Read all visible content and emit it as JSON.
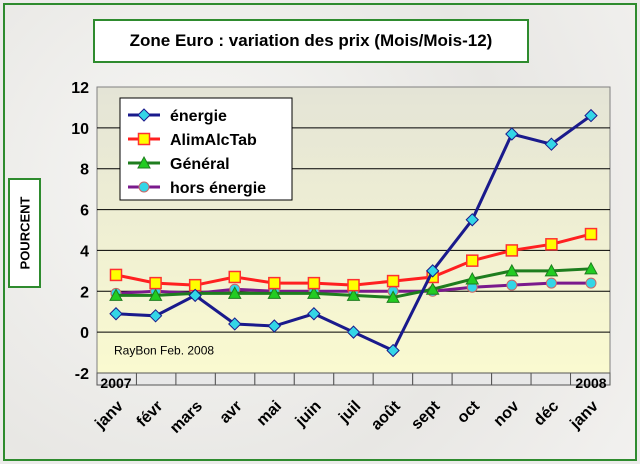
{
  "chart_data": {
    "type": "line",
    "title": "Zone Euro : variation des prix (Mois/Mois-12)",
    "ylabel": "POURCENT",
    "xlabel": "",
    "ylim": [
      -2,
      12
    ],
    "yticks": [
      -2,
      0,
      2,
      4,
      6,
      8,
      10,
      12
    ],
    "categories": [
      "janv",
      "févr",
      "mars",
      "avr",
      "mai",
      "juin",
      "juil",
      "août",
      "sept",
      "oct",
      "nov",
      "déc",
      "janv"
    ],
    "year_labels": [
      {
        "index": 0,
        "label": "2007"
      },
      {
        "index": 12,
        "label": "2008"
      }
    ],
    "annotation": "RayBon Feb. 2008",
    "legend_position": "top-left",
    "grid": true,
    "series": [
      {
        "name": "énergie",
        "color": "#1a1a8c",
        "marker": "diamond",
        "marker_color": "#33d6e6",
        "values": [
          0.9,
          0.8,
          1.8,
          0.4,
          0.3,
          0.9,
          0.0,
          -0.9,
          3.0,
          5.5,
          9.7,
          9.2,
          10.6
        ]
      },
      {
        "name": "AlimAlcTab",
        "color": "#ff2020",
        "marker": "square",
        "marker_color": "#ffff00",
        "values": [
          2.8,
          2.4,
          2.3,
          2.7,
          2.4,
          2.4,
          2.3,
          2.5,
          2.7,
          3.5,
          4.0,
          4.3,
          4.8
        ]
      },
      {
        "name": "Général",
        "color": "#1e7d1e",
        "marker": "triangle",
        "marker_color": "#22cc22",
        "values": [
          1.8,
          1.8,
          1.9,
          1.9,
          1.9,
          1.9,
          1.8,
          1.7,
          2.1,
          2.6,
          3.0,
          3.0,
          3.1
        ]
      },
      {
        "name": "hors énergie",
        "color": "#7a1a8c",
        "marker": "circle",
        "marker_color": "#33d6e6",
        "values": [
          1.9,
          2.0,
          1.9,
          2.1,
          2.0,
          2.0,
          2.0,
          2.0,
          2.0,
          2.2,
          2.3,
          2.4,
          2.4
        ]
      }
    ]
  }
}
